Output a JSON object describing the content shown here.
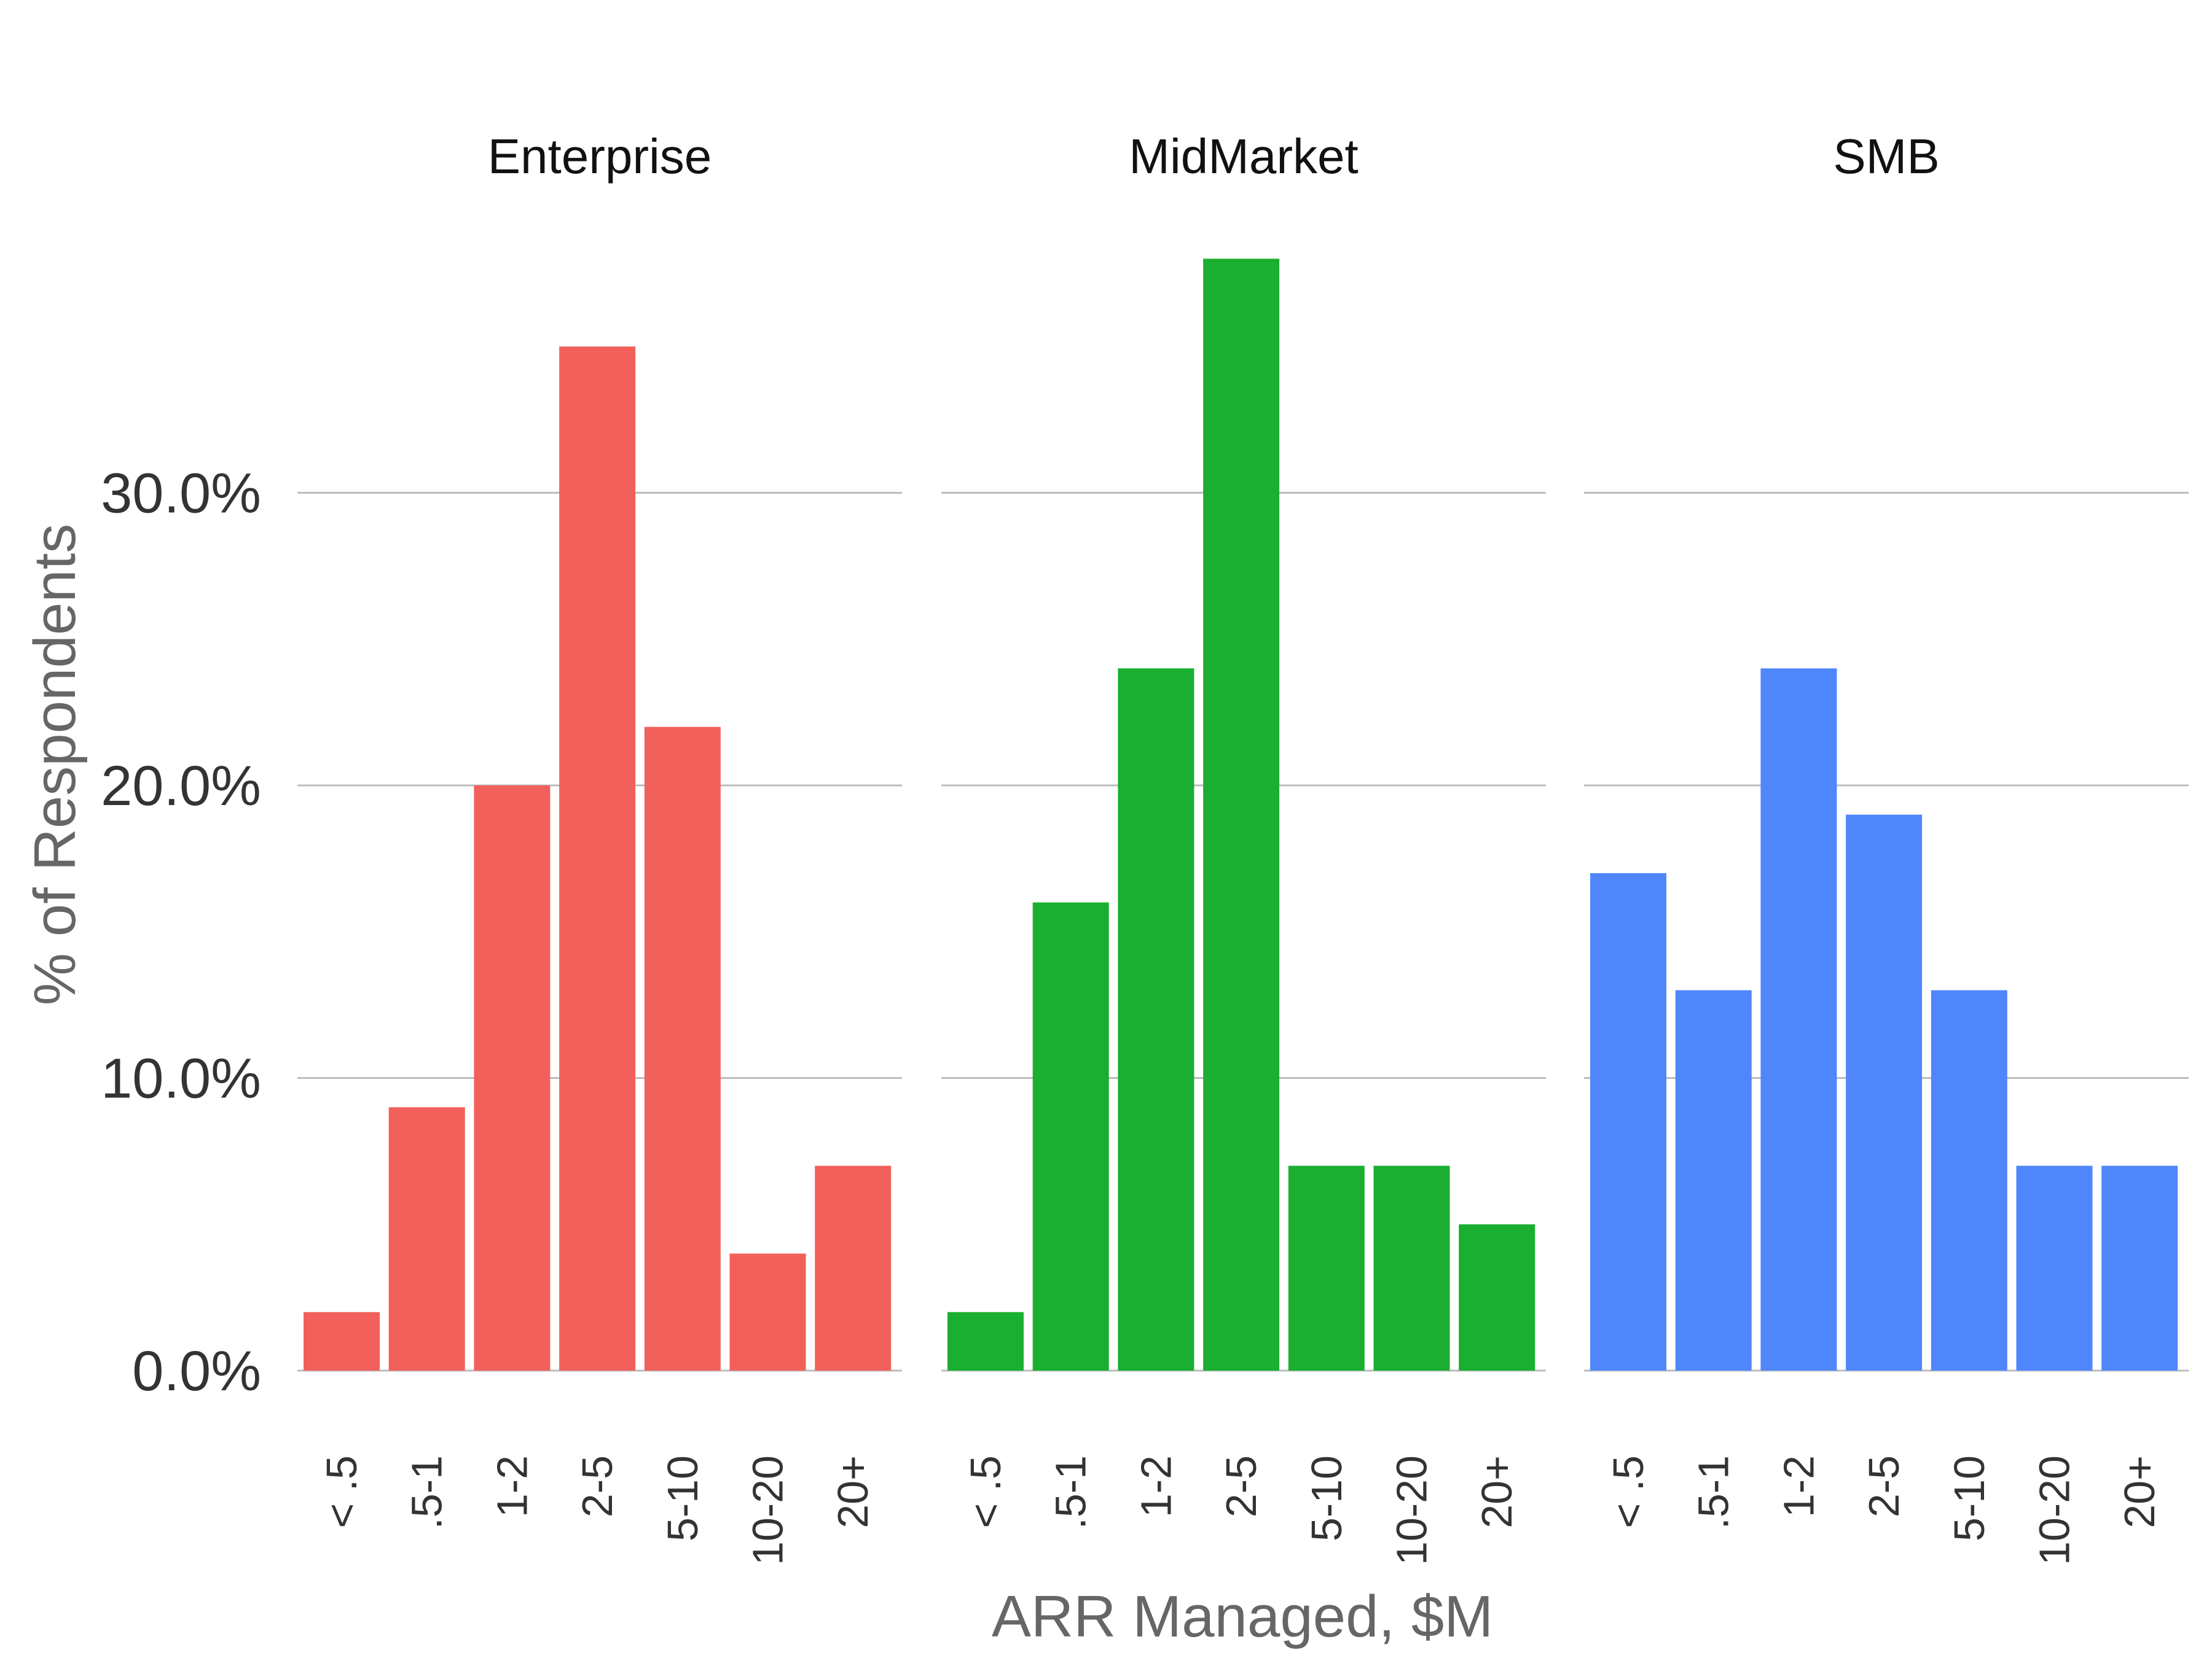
{
  "chart_data": {
    "type": "bar",
    "layout": "facets",
    "xlabel": "ARR Managed, $M",
    "ylabel": "% of Respondents",
    "ylim": [
      0,
      38
    ],
    "yticks": [
      0,
      10,
      20,
      30
    ],
    "ytick_labels": [
      "0.0%",
      "10.0%",
      "20.0%",
      "30.0%"
    ],
    "grid": "horizontal",
    "categories": [
      "< .5",
      ".5-1",
      "1-2",
      "2-5",
      "5-10",
      "10-20",
      "20+"
    ],
    "facets": [
      {
        "name": "Enterprise",
        "color": "#f2605b",
        "values": [
          2,
          9,
          20,
          35,
          22,
          4,
          7
        ]
      },
      {
        "name": "MidMarket",
        "color": "#1aaf30",
        "values": [
          2,
          16,
          24,
          38,
          7,
          7,
          5
        ]
      },
      {
        "name": "SMB",
        "color": "#4f86fb",
        "values": [
          17,
          13,
          24,
          19,
          13,
          7,
          7
        ]
      }
    ]
  }
}
